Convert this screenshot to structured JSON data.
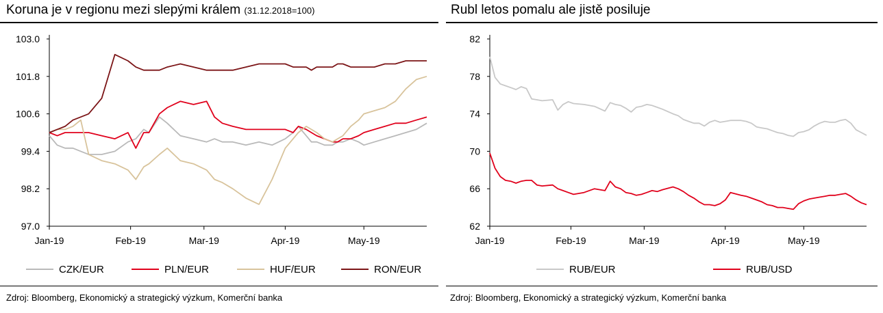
{
  "panels": [
    {
      "title": "Koruna je v regionu mezi slepými králem",
      "subtitle": "(31.12.2018=100)",
      "source": "Zdroj: Bloomberg, Ekonomický a strategický výzkum, Komerční banka",
      "chart_data": {
        "type": "line",
        "title": "Koruna je v regionu mezi slepými králem (31.12.2018=100)",
        "xlabel": "",
        "ylabel": "",
        "ylim": [
          97.0,
          103.0
        ],
        "yticks": [
          97.0,
          98.2,
          99.4,
          100.6,
          101.8,
          103.0
        ],
        "ytick_labels": [
          "97.0",
          "98.2",
          "99.4",
          "100.6",
          "101.8",
          "103.0"
        ],
        "xlim": [
          0,
          144
        ],
        "xticks": [
          0,
          31,
          59,
          90,
          120
        ],
        "xtick_labels": [
          "Jan-19",
          "Feb-19",
          "Mar-19",
          "Apr-19",
          "May-19"
        ],
        "grid": false,
        "legend_position": "bottom",
        "series": [
          {
            "name": "CZK/EUR",
            "color": "#b9b9b9",
            "x": [
              0,
              3,
              6,
              9,
              12,
              15,
              20,
              25,
              30,
              33,
              36,
              38,
              42,
              45,
              50,
              55,
              60,
              63,
              66,
              70,
              75,
              80,
              85,
              90,
              93,
              95,
              98,
              100,
              102,
              105,
              108,
              110,
              112,
              115,
              118,
              120,
              124,
              128,
              132,
              136,
              140,
              144
            ],
            "values": [
              99.9,
              99.6,
              99.5,
              99.5,
              99.4,
              99.3,
              99.3,
              99.4,
              99.7,
              99.8,
              100.1,
              100.0,
              100.5,
              100.3,
              99.9,
              99.8,
              99.7,
              99.8,
              99.7,
              99.7,
              99.6,
              99.7,
              99.6,
              99.8,
              100.0,
              100.2,
              99.9,
              99.7,
              99.7,
              99.6,
              99.6,
              99.7,
              99.7,
              99.8,
              99.7,
              99.6,
              99.7,
              99.8,
              99.9,
              100.0,
              100.1,
              100.3
            ]
          },
          {
            "name": "PLN/EUR",
            "color": "#e0001b",
            "x": [
              0,
              3,
              6,
              9,
              12,
              15,
              20,
              25,
              30,
              33,
              36,
              38,
              42,
              45,
              50,
              55,
              60,
              63,
              66,
              70,
              75,
              80,
              85,
              90,
              93,
              95,
              98,
              100,
              102,
              105,
              108,
              110,
              112,
              115,
              118,
              120,
              124,
              128,
              132,
              136,
              140,
              144
            ],
            "values": [
              100.0,
              99.9,
              100.0,
              100.0,
              100.0,
              100.0,
              99.9,
              99.8,
              100.0,
              99.5,
              100.0,
              100.0,
              100.6,
              100.8,
              101.0,
              100.9,
              101.0,
              100.5,
              100.3,
              100.2,
              100.1,
              100.1,
              100.1,
              100.1,
              100.0,
              100.2,
              100.1,
              100.0,
              99.9,
              99.8,
              99.7,
              99.7,
              99.8,
              99.8,
              99.9,
              100.0,
              100.1,
              100.2,
              100.3,
              100.3,
              100.4,
              100.5
            ]
          },
          {
            "name": "HUF/EUR",
            "color": "#d8c39b",
            "x": [
              0,
              3,
              6,
              9,
              12,
              15,
              20,
              25,
              30,
              33,
              36,
              38,
              42,
              45,
              50,
              55,
              60,
              63,
              66,
              70,
              75,
              80,
              85,
              90,
              93,
              95,
              98,
              100,
              102,
              105,
              108,
              110,
              112,
              115,
              118,
              120,
              124,
              128,
              132,
              136,
              140,
              144
            ],
            "values": [
              100.0,
              100.1,
              100.1,
              100.2,
              100.4,
              99.3,
              99.1,
              99.0,
              98.8,
              98.5,
              98.9,
              99.0,
              99.3,
              99.5,
              99.1,
              99.0,
              98.8,
              98.5,
              98.4,
              98.2,
              97.9,
              97.7,
              98.5,
              99.5,
              99.8,
              100.0,
              100.2,
              100.1,
              100.0,
              99.8,
              99.7,
              99.8,
              99.9,
              100.2,
              100.4,
              100.6,
              100.7,
              100.8,
              101.0,
              101.4,
              101.7,
              101.8
            ]
          },
          {
            "name": "RON/EUR",
            "color": "#7b1416",
            "x": [
              0,
              3,
              6,
              9,
              12,
              15,
              20,
              25,
              30,
              33,
              36,
              38,
              42,
              45,
              50,
              55,
              60,
              63,
              66,
              70,
              75,
              80,
              85,
              90,
              93,
              95,
              98,
              100,
              102,
              105,
              108,
              110,
              112,
              115,
              118,
              120,
              124,
              128,
              132,
              136,
              140,
              144
            ],
            "values": [
              100.0,
              100.1,
              100.2,
              100.4,
              100.5,
              100.6,
              101.1,
              102.5,
              102.3,
              102.1,
              102.0,
              102.0,
              102.0,
              102.1,
              102.2,
              102.1,
              102.0,
              102.0,
              102.0,
              102.0,
              102.1,
              102.2,
              102.2,
              102.2,
              102.1,
              102.1,
              102.1,
              102.0,
              102.1,
              102.1,
              102.1,
              102.2,
              102.2,
              102.1,
              102.1,
              102.1,
              102.1,
              102.2,
              102.2,
              102.3,
              102.3,
              102.3
            ]
          }
        ]
      },
      "legend": [
        {
          "label": "CZK/EUR",
          "color": "#b9b9b9"
        },
        {
          "label": "PLN/EUR",
          "color": "#e0001b"
        },
        {
          "label": "HUF/EUR",
          "color": "#d8c39b"
        },
        {
          "label": "RON/EUR",
          "color": "#7b1416"
        }
      ]
    },
    {
      "title": "Rubl letos pomalu ale jistě posiluje",
      "subtitle": "",
      "source": "Zdroj: Bloomberg, Ekonomický a strategický výzkum, Komerční banka",
      "chart_data": {
        "type": "line",
        "title": "Rubl letos pomalu ale jistě posiluje",
        "xlabel": "",
        "ylabel": "",
        "ylim": [
          62,
          82
        ],
        "yticks": [
          62,
          66,
          70,
          74,
          78,
          82
        ],
        "ytick_labels": [
          "62",
          "66",
          "70",
          "74",
          "78",
          "82"
        ],
        "xlim": [
          0,
          144
        ],
        "xticks": [
          0,
          31,
          59,
          90,
          120
        ],
        "xtick_labels": [
          "Jan-19",
          "Feb-19",
          "Mar-19",
          "Apr-19",
          "May-19"
        ],
        "grid": false,
        "legend_position": "bottom",
        "series": [
          {
            "name": "RUB/EUR",
            "color": "#c8c8c8",
            "x": [
              0,
              2,
              4,
              6,
              8,
              10,
              12,
              14,
              16,
              18,
              20,
              24,
              26,
              28,
              30,
              32,
              36,
              40,
              44,
              46,
              48,
              50,
              52,
              54,
              56,
              58,
              60,
              62,
              64,
              66,
              70,
              72,
              74,
              76,
              78,
              80,
              82,
              84,
              86,
              88,
              90,
              92,
              96,
              98,
              100,
              102,
              104,
              106,
              108,
              110,
              112,
              114,
              116,
              118,
              120,
              122,
              124,
              126,
              128,
              130,
              132,
              134,
              136,
              138,
              140,
              142,
              144
            ],
            "values": [
              80.1,
              77.9,
              77.2,
              77.0,
              76.8,
              76.6,
              76.9,
              76.7,
              75.6,
              75.5,
              75.4,
              75.5,
              74.4,
              75.0,
              75.3,
              75.1,
              75.0,
              74.8,
              74.3,
              75.2,
              75.0,
              74.9,
              74.6,
              74.2,
              74.7,
              74.8,
              75.0,
              74.9,
              74.7,
              74.5,
              74.0,
              73.8,
              73.4,
              73.2,
              73.0,
              73.0,
              72.7,
              73.1,
              73.3,
              73.1,
              73.2,
              73.3,
              73.3,
              73.2,
              73.0,
              72.6,
              72.5,
              72.4,
              72.2,
              72.0,
              71.9,
              71.7,
              71.6,
              72.0,
              72.1,
              72.3,
              72.7,
              73.0,
              73.2,
              73.1,
              73.1,
              73.3,
              73.4,
              73.0,
              72.3,
              72.0,
              71.7
            ]
          },
          {
            "name": "RUB/USD",
            "color": "#e0001b",
            "x": [
              0,
              2,
              4,
              6,
              8,
              10,
              12,
              14,
              16,
              18,
              20,
              24,
              26,
              28,
              30,
              32,
              36,
              40,
              44,
              46,
              48,
              50,
              52,
              54,
              56,
              58,
              60,
              62,
              64,
              66,
              70,
              72,
              74,
              76,
              78,
              80,
              82,
              84,
              86,
              88,
              90,
              92,
              96,
              98,
              100,
              102,
              104,
              106,
              108,
              110,
              112,
              114,
              116,
              118,
              120,
              122,
              124,
              126,
              128,
              130,
              132,
              134,
              136,
              138,
              140,
              142,
              144
            ],
            "values": [
              69.8,
              68.2,
              67.3,
              66.9,
              66.8,
              66.6,
              66.8,
              66.9,
              66.9,
              66.4,
              66.3,
              66.4,
              66.0,
              65.8,
              65.6,
              65.4,
              65.6,
              66.0,
              65.8,
              66.8,
              66.2,
              66.0,
              65.6,
              65.5,
              65.3,
              65.4,
              65.6,
              65.8,
              65.7,
              65.9,
              66.2,
              66.0,
              65.7,
              65.3,
              65.0,
              64.6,
              64.3,
              64.3,
              64.2,
              64.4,
              64.8,
              65.6,
              65.3,
              65.2,
              65.0,
              64.8,
              64.6,
              64.3,
              64.2,
              64.0,
              64.0,
              63.9,
              63.8,
              64.4,
              64.7,
              64.9,
              65.0,
              65.1,
              65.2,
              65.3,
              65.3,
              65.4,
              65.5,
              65.2,
              64.8,
              64.5,
              64.3
            ]
          }
        ]
      },
      "legend": [
        {
          "label": "RUB/EUR",
          "color": "#c8c8c8"
        },
        {
          "label": "RUB/USD",
          "color": "#e0001b"
        }
      ]
    }
  ]
}
